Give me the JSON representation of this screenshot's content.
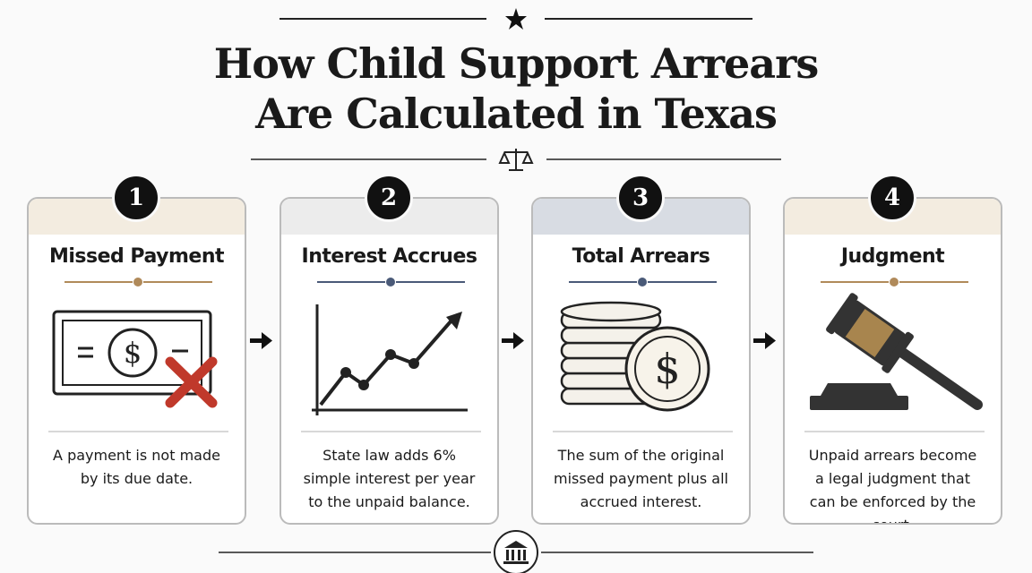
{
  "title": {
    "line1": "How Child Support Arrears",
    "line2": "Are Calculated in Texas"
  },
  "steps": [
    {
      "number": "1",
      "title": "Missed Payment",
      "description": "A payment is not made by its due date."
    },
    {
      "number": "2",
      "title": "Interest Accrues",
      "description": "State law adds 6% simple interest per year to the unpaid balance."
    },
    {
      "number": "3",
      "title": "Total Arrears",
      "description": "The sum of the original missed payment plus all accrued interest."
    },
    {
      "number": "4",
      "title": "Judgment",
      "description": "Unpaid arrears become a legal judgment that can be enforced by the court."
    }
  ]
}
